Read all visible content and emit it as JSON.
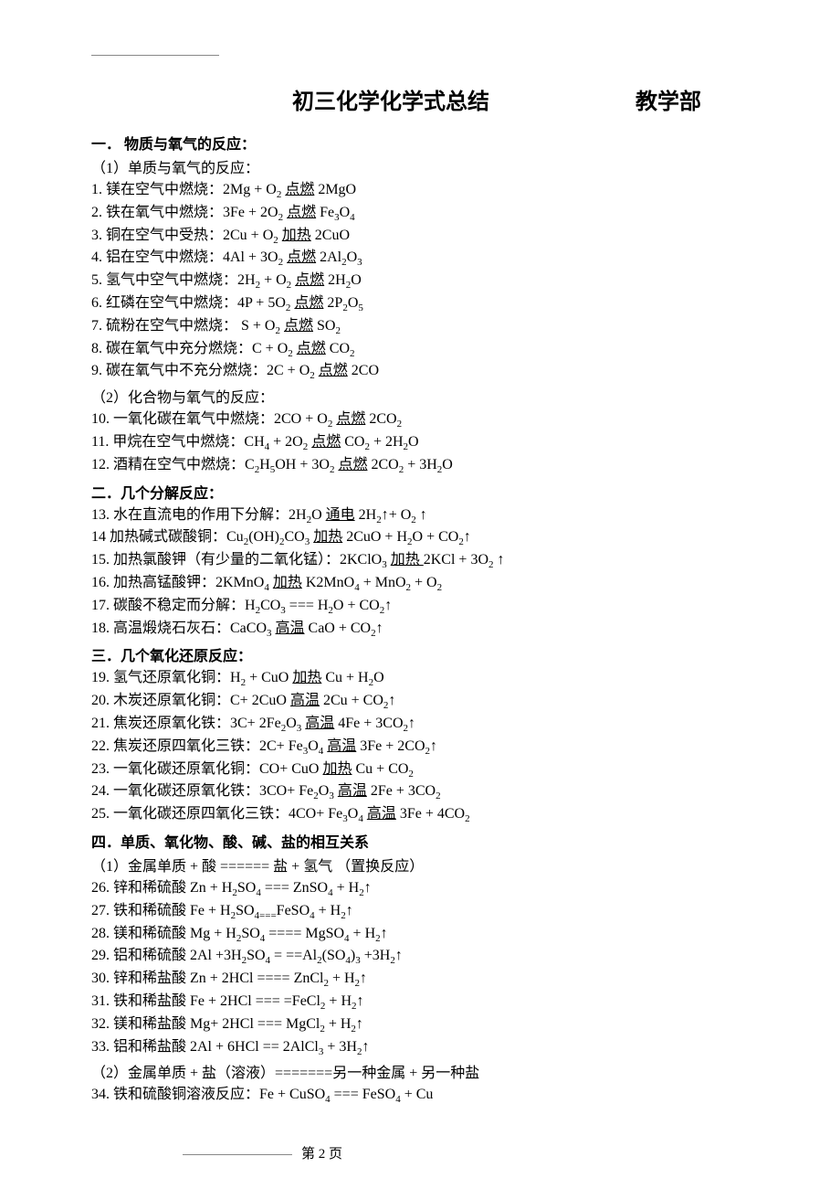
{
  "title": "初三化学化学式总结",
  "department": "教学部",
  "footer": "第 2 页",
  "sections": [
    {
      "heading": "一． 物质与氧气的反应：",
      "subheading": "（1）单质与氧气的反应：",
      "items": [
        {
          "n": "1.",
          "desc": "镁在空气中燃烧：",
          "eq": "2Mg + O<sub>2</sub> <span class='cond'>点燃</span> 2MgO"
        },
        {
          "n": "2.",
          "desc": "铁在氧气中燃烧：",
          "eq": "3Fe + 2O<sub>2</sub> <span class='cond'>点燃</span> Fe<sub>3</sub>O<sub>4</sub>"
        },
        {
          "n": "3.",
          "desc": "铜在空气中受热：",
          "eq": "2Cu + O<sub>2</sub> <span class='cond'>加热</span>  2CuO"
        },
        {
          "n": "4.",
          "desc": "铝在空气中燃烧：",
          "eq": "4Al + 3O<sub>2</sub> <span class='cond'>点燃</span> 2Al<sub>2</sub>O<sub>3</sub>"
        },
        {
          "n": "5.",
          "desc": "氢气中空气中燃烧：",
          "eq": "2H<sub>2</sub> + O<sub>2</sub> <span class='cond'>点燃</span> 2H<sub>2</sub>O"
        },
        {
          "n": "6.",
          "desc": "红磷在空气中燃烧：",
          "eq": "4P + 5O<sub>2</sub> <span class='cond'>点燃</span> 2P<sub>2</sub>O<sub>5</sub>"
        },
        {
          "n": "7.",
          "desc": "硫粉在空气中燃烧：",
          "eq": " S + O<sub>2</sub> <span class='cond'>点燃</span> SO<sub>2</sub>"
        },
        {
          "n": "8.",
          "desc": "碳在氧气中充分燃烧：",
          "eq": "C + O<sub>2</sub> <span class='cond'>点燃</span> CO<sub>2</sub>"
        },
        {
          "n": "9.",
          "desc": "碳在氧气中不充分燃烧：",
          "eq": "2C + O<sub>2</sub> <span class='cond'>点燃</span> 2CO"
        }
      ]
    },
    {
      "subheading": "（2）化合物与氧气的反应：",
      "items": [
        {
          "n": "10.",
          "desc": "  一氧化碳在氧气中燃烧：",
          "eq": "2CO + O<sub>2</sub> <span class='cond'>点燃</span> 2CO<sub>2</sub>"
        },
        {
          "n": "11.",
          "desc": "  甲烷在空气中燃烧：",
          "eq": "CH<sub>4</sub> + 2O<sub>2</sub> <span class='cond'>点燃</span> CO<sub>2</sub> + 2H<sub>2</sub>O"
        },
        {
          "n": "12.",
          "desc": "  酒精在空气中燃烧：",
          "eq": "C<sub>2</sub>H<sub>5</sub>OH + 3O<sub>2</sub> <span class='cond'>点燃</span> 2CO<sub>2</sub> + 3H<sub>2</sub>O"
        }
      ]
    },
    {
      "heading": "二．几个分解反应：",
      "items": [
        {
          "n": "13.",
          "desc": "  水在直流电的作用下分解：",
          "eq": "2H<sub>2</sub>O <span class='cond'>通电</span> 2H<sub>2</sub>↑+ O<sub>2</sub> ↑"
        },
        {
          "n": "14",
          "desc": " 加热碱式碳酸铜：",
          "eq": "Cu<sub>2</sub>(OH)<sub>2</sub>CO<sub>3</sub> <span class='cond'>加热</span> 2CuO + H<sub>2</sub>O + CO<sub>2</sub>↑"
        },
        {
          "n": "15.",
          "desc": "  加热氯酸钾（有少量的二氧化锰）：",
          "eq": "2KClO<sub>3</sub> <span class='cond'>加热 </span>2KCl + 3O<sub>2</sub> ↑"
        },
        {
          "n": "16.",
          "desc": "  加热高锰酸钾：",
          "eq": "2KMnO<sub>4</sub> <span class='cond'>加热</span> K2MnO<sub>4</sub> + MnO<sub>2</sub> + O<sub>2</sub>"
        },
        {
          "n": "17.",
          "desc": "  碳酸不稳定而分解：",
          "eq": "H<sub>2</sub>CO<sub>3</sub> ===  H<sub>2</sub>O + CO<sub>2</sub>↑"
        },
        {
          "n": "18.",
          "desc": "  高温煅烧石灰石：",
          "eq": "CaCO<sub>3</sub> <span class='cond'>高温</span> CaO + CO<sub>2</sub>↑"
        }
      ]
    },
    {
      "heading": "三．几个氧化还原反应：",
      "items": [
        {
          "n": "19.",
          "desc": "  氢气还原氧化铜：",
          "eq": "H<sub>2</sub> + CuO <span class='cond'>加热</span> Cu + H<sub>2</sub>O"
        },
        {
          "n": "20.",
          "desc": "  木炭还原氧化铜：",
          "eq": "C+ 2CuO  <span class='cond'>高温</span> 2Cu + CO<sub>2</sub>↑"
        },
        {
          "n": "21.",
          "desc": "  焦炭还原氧化铁：",
          "eq": "3C+ 2Fe<sub>2</sub>O<sub>3</sub> <span class='cond'>高温</span> 4Fe + 3CO<sub>2</sub>↑"
        },
        {
          "n": "22.",
          "desc": "  焦炭还原四氧化三铁：",
          "eq": "2C+ Fe<sub>3</sub>O<sub>4</sub> <span class='cond'>高温</span> 3Fe + 2CO<sub>2</sub>↑"
        },
        {
          "n": "23.",
          "desc": "  一氧化碳还原氧化铜：",
          "eq": "CO+ CuO <span class='cond'>加热</span>  Cu + CO<sub>2</sub>"
        },
        {
          "n": "24.",
          "desc": "  一氧化碳还原氧化铁：",
          "eq": "3CO+ Fe<sub>2</sub>O<sub>3</sub> <span class='cond'>高温</span> 2Fe + 3CO<sub>2</sub>"
        },
        {
          "n": "25.",
          "desc": "  一氧化碳还原四氧化三铁：",
          "eq": "4CO+ Fe<sub>3</sub>O<sub>4</sub> <span class='cond'>高温</span> 3Fe + 4CO<sub>2</sub>"
        }
      ]
    },
    {
      "heading": "四．单质、氧化物、酸、碱、盐的相互关系",
      "subheading": "（1）金属单质 +  酸 ====== 盐  +  氢气  （置换反应）",
      "items": [
        {
          "n": "26.",
          "desc": "  锌和稀硫酸 ",
          "eq": "Zn + H<sub>2</sub>SO<sub>4</sub> === ZnSO<sub>4</sub> + H<sub>2</sub>↑"
        },
        {
          "n": "27.",
          "desc": "  铁和稀硫酸 ",
          "eq": "Fe + H<sub>2</sub>SO<sub>4===</sub>FeSO<sub>4</sub> + H<sub>2</sub>↑"
        },
        {
          "n": "28.",
          "desc": "  镁和稀硫酸 ",
          "eq": "Mg + H<sub>2</sub>SO<sub>4</sub> ==== MgSO<sub>4</sub> + H<sub>2</sub>↑"
        },
        {
          "n": "29.",
          "desc": "  铝和稀硫酸 ",
          "eq": "2Al +3H<sub>2</sub>SO<sub>4</sub> = ==Al<sub>2</sub>(SO<sub>4</sub>)<sub>3</sub> +3H<sub>2</sub>↑"
        },
        {
          "n": "30.",
          "desc": "  锌和稀盐酸 ",
          "eq": "Zn + 2HCl ==== ZnCl<sub>2</sub> + H<sub>2</sub>↑"
        },
        {
          "n": "31.",
          "desc": "  铁和稀盐酸 ",
          "eq": "Fe + 2HCl === =FeCl<sub>2</sub> + H<sub>2</sub>↑"
        },
        {
          "n": "32.",
          "desc": "  镁和稀盐酸 ",
          "eq": "Mg+ 2HCl === MgCl<sub>2</sub> + H<sub>2</sub>↑"
        },
        {
          "n": "33.",
          "desc": "  铝和稀盐酸 ",
          "eq": "2Al + 6HCl  == 2AlCl<sub>3</sub> + 3H<sub>2</sub>↑"
        }
      ]
    },
    {
      "subheading": "（2）金属单质 + 盐（溶液）=======另一种金属 + 另一种盐",
      "items": [
        {
          "n": "34.",
          "desc": "  铁和硫酸铜溶液反应：",
          "eq": "Fe + CuSO<sub>4</sub> === FeSO<sub>4</sub> + Cu"
        }
      ]
    }
  ]
}
